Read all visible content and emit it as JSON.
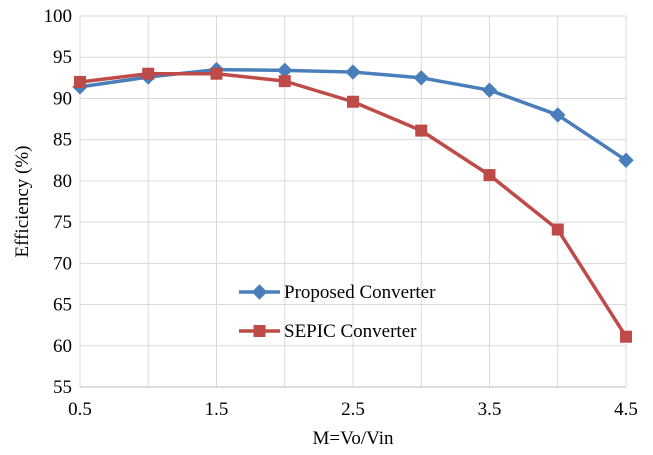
{
  "chart_data": {
    "type": "line",
    "title": "",
    "xlabel": "M=Vo/Vin",
    "ylabel": "Efficiency (%)",
    "xlim": [
      0.5,
      4.5
    ],
    "ylim": [
      55,
      100
    ],
    "x_ticks": [
      0.5,
      1.5,
      2.5,
      3.5,
      4.5
    ],
    "x_tick_labels": [
      "0.5",
      "1.5",
      "2.5",
      "3.5",
      "4.5"
    ],
    "y_ticks": [
      55,
      60,
      65,
      70,
      75,
      80,
      85,
      90,
      95,
      100
    ],
    "y_tick_labels": [
      "55",
      "60",
      "65",
      "70",
      "75",
      "80",
      "85",
      "90",
      "95",
      "100"
    ],
    "x_gridlines": [
      0.5,
      1,
      1.5,
      2,
      2.5,
      3,
      3.5,
      4,
      4.5
    ],
    "grid": true,
    "legend_position": "center-left",
    "x": [
      0.5,
      1,
      1.5,
      2,
      2.5,
      3,
      3.5,
      4,
      4.5
    ],
    "series": [
      {
        "name": "Proposed Converter",
        "color": "#4A7EBB",
        "marker": "diamond",
        "values": [
          91.4,
          92.6,
          93.5,
          93.4,
          93.2,
          92.5,
          91.0,
          88.0,
          82.5
        ]
      },
      {
        "name": "SEPIC Converter",
        "color": "#BE4B48",
        "marker": "square",
        "values": [
          92.0,
          93.0,
          93.0,
          92.1,
          89.6,
          86.1,
          80.7,
          74.1,
          61.1
        ]
      }
    ]
  }
}
